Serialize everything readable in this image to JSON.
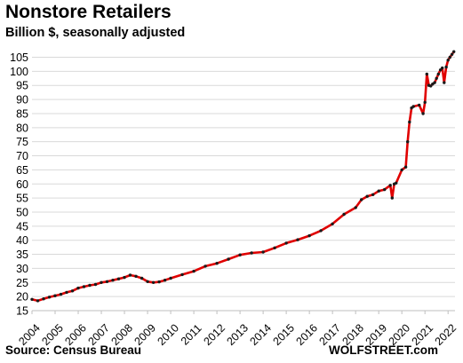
{
  "header": {
    "title": "Nonstore Retailers",
    "subtitle": "Billion $, seasonally adjusted"
  },
  "footer": {
    "source": "Source: Census Bureau",
    "watermark": "WOLFSTREET.com"
  },
  "colors": {
    "line": "#e00000",
    "markers": "#1a1a1a",
    "grid": "#d9d9d9"
  },
  "chart_data": {
    "type": "line",
    "title": "Nonstore Retailers",
    "subtitle": "Billion $, seasonally adjusted",
    "xlabel": "",
    "ylabel": "",
    "xlim": [
      2004.0,
      2022.3
    ],
    "ylim": [
      15,
      108
    ],
    "y_ticks": [
      15,
      20,
      25,
      30,
      35,
      40,
      45,
      50,
      55,
      60,
      65,
      70,
      75,
      80,
      85,
      90,
      95,
      100,
      105
    ],
    "x_tick_labels": [
      "2004",
      "2005",
      "2006",
      "2007",
      "2008",
      "2009",
      "2010",
      "2011",
      "2012",
      "2013",
      "2014",
      "2015",
      "2016",
      "2017",
      "2018",
      "2019",
      "2020",
      "2021",
      "2022"
    ],
    "grid": true,
    "legend": "none",
    "series": [
      {
        "x": [
          2004.0,
          2004.25,
          2004.5,
          2004.75,
          2005.0,
          2005.25,
          2005.5,
          2005.75,
          2006.0,
          2006.25,
          2006.5,
          2006.75,
          2007.0,
          2007.25,
          2007.5,
          2007.75,
          2008.0,
          2008.25,
          2008.5,
          2008.75,
          2009.0,
          2009.25,
          2009.5,
          2009.75,
          2010.0,
          2010.5,
          2011.0,
          2011.5,
          2012.0,
          2012.5,
          2013.0,
          2013.5,
          2014.0,
          2014.5,
          2015.0,
          2015.5,
          2016.0,
          2016.5,
          2017.0,
          2017.5,
          2018.0,
          2018.25,
          2018.5,
          2018.75,
          2019.0,
          2019.25,
          2019.5,
          2019.58,
          2019.67,
          2019.75,
          2020.0,
          2020.17,
          2020.25,
          2020.33,
          2020.42,
          2020.5,
          2020.75,
          2020.92,
          2021.0,
          2021.08,
          2021.17,
          2021.25,
          2021.33,
          2021.42,
          2021.5,
          2021.58,
          2021.67,
          2021.75,
          2021.83,
          2021.92,
          2022.0,
          2022.08,
          2022.17,
          2022.25
        ],
        "values": [
          19.0,
          18.5,
          19.2,
          19.8,
          20.3,
          20.8,
          21.5,
          22.0,
          23.0,
          23.5,
          24.0,
          24.3,
          25.0,
          25.3,
          25.8,
          26.3,
          26.8,
          27.6,
          27.2,
          26.5,
          25.3,
          25.0,
          25.2,
          25.8,
          26.5,
          27.8,
          29.0,
          30.8,
          31.8,
          33.3,
          34.8,
          35.5,
          35.8,
          37.3,
          39.0,
          40.2,
          41.6,
          43.4,
          45.8,
          49.2,
          51.6,
          54.4,
          55.6,
          56.2,
          57.5,
          58.0,
          59.5,
          55.0,
          60.0,
          60.3,
          65.0,
          66.0,
          75.0,
          82.0,
          87.0,
          87.5,
          88.0,
          85.0,
          89.0,
          99.0,
          95.0,
          94.8,
          95.5,
          96.0,
          97.5,
          99.0,
          100.5,
          101.2,
          96.0,
          101.5,
          104.0,
          105.0,
          106.0,
          107.0
        ]
      }
    ]
  }
}
